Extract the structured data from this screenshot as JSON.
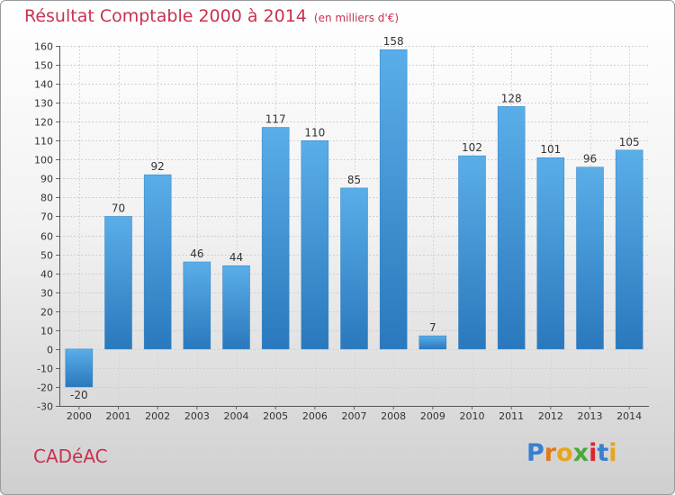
{
  "chart_data": {
    "type": "bar",
    "title": "Résultat Comptable 2000 à 2014",
    "unit": "(en milliers d'€)",
    "categories": [
      "2000",
      "2001",
      "2002",
      "2003",
      "2004",
      "2005",
      "2006",
      "2007",
      "2008",
      "2009",
      "2010",
      "2011",
      "2012",
      "2013",
      "2014"
    ],
    "values": [
      -20,
      70,
      92,
      46,
      44,
      117,
      110,
      85,
      158,
      7,
      102,
      128,
      101,
      96,
      105
    ],
    "ylim": [
      -30,
      160
    ],
    "ytick_step": 10,
    "xlabel": "",
    "ylabel": "",
    "grid": true,
    "bar_color": "#3a93d8"
  },
  "commune": "CADéAC",
  "logo": {
    "letters": [
      "P",
      "r",
      "o",
      "x",
      "i",
      "t",
      "i"
    ],
    "colors": [
      "#3a7fd0",
      "#e07a1f",
      "#e8a51b",
      "#4aa83a",
      "#d7282f",
      "#3a7fd0",
      "#e8a51b"
    ]
  }
}
